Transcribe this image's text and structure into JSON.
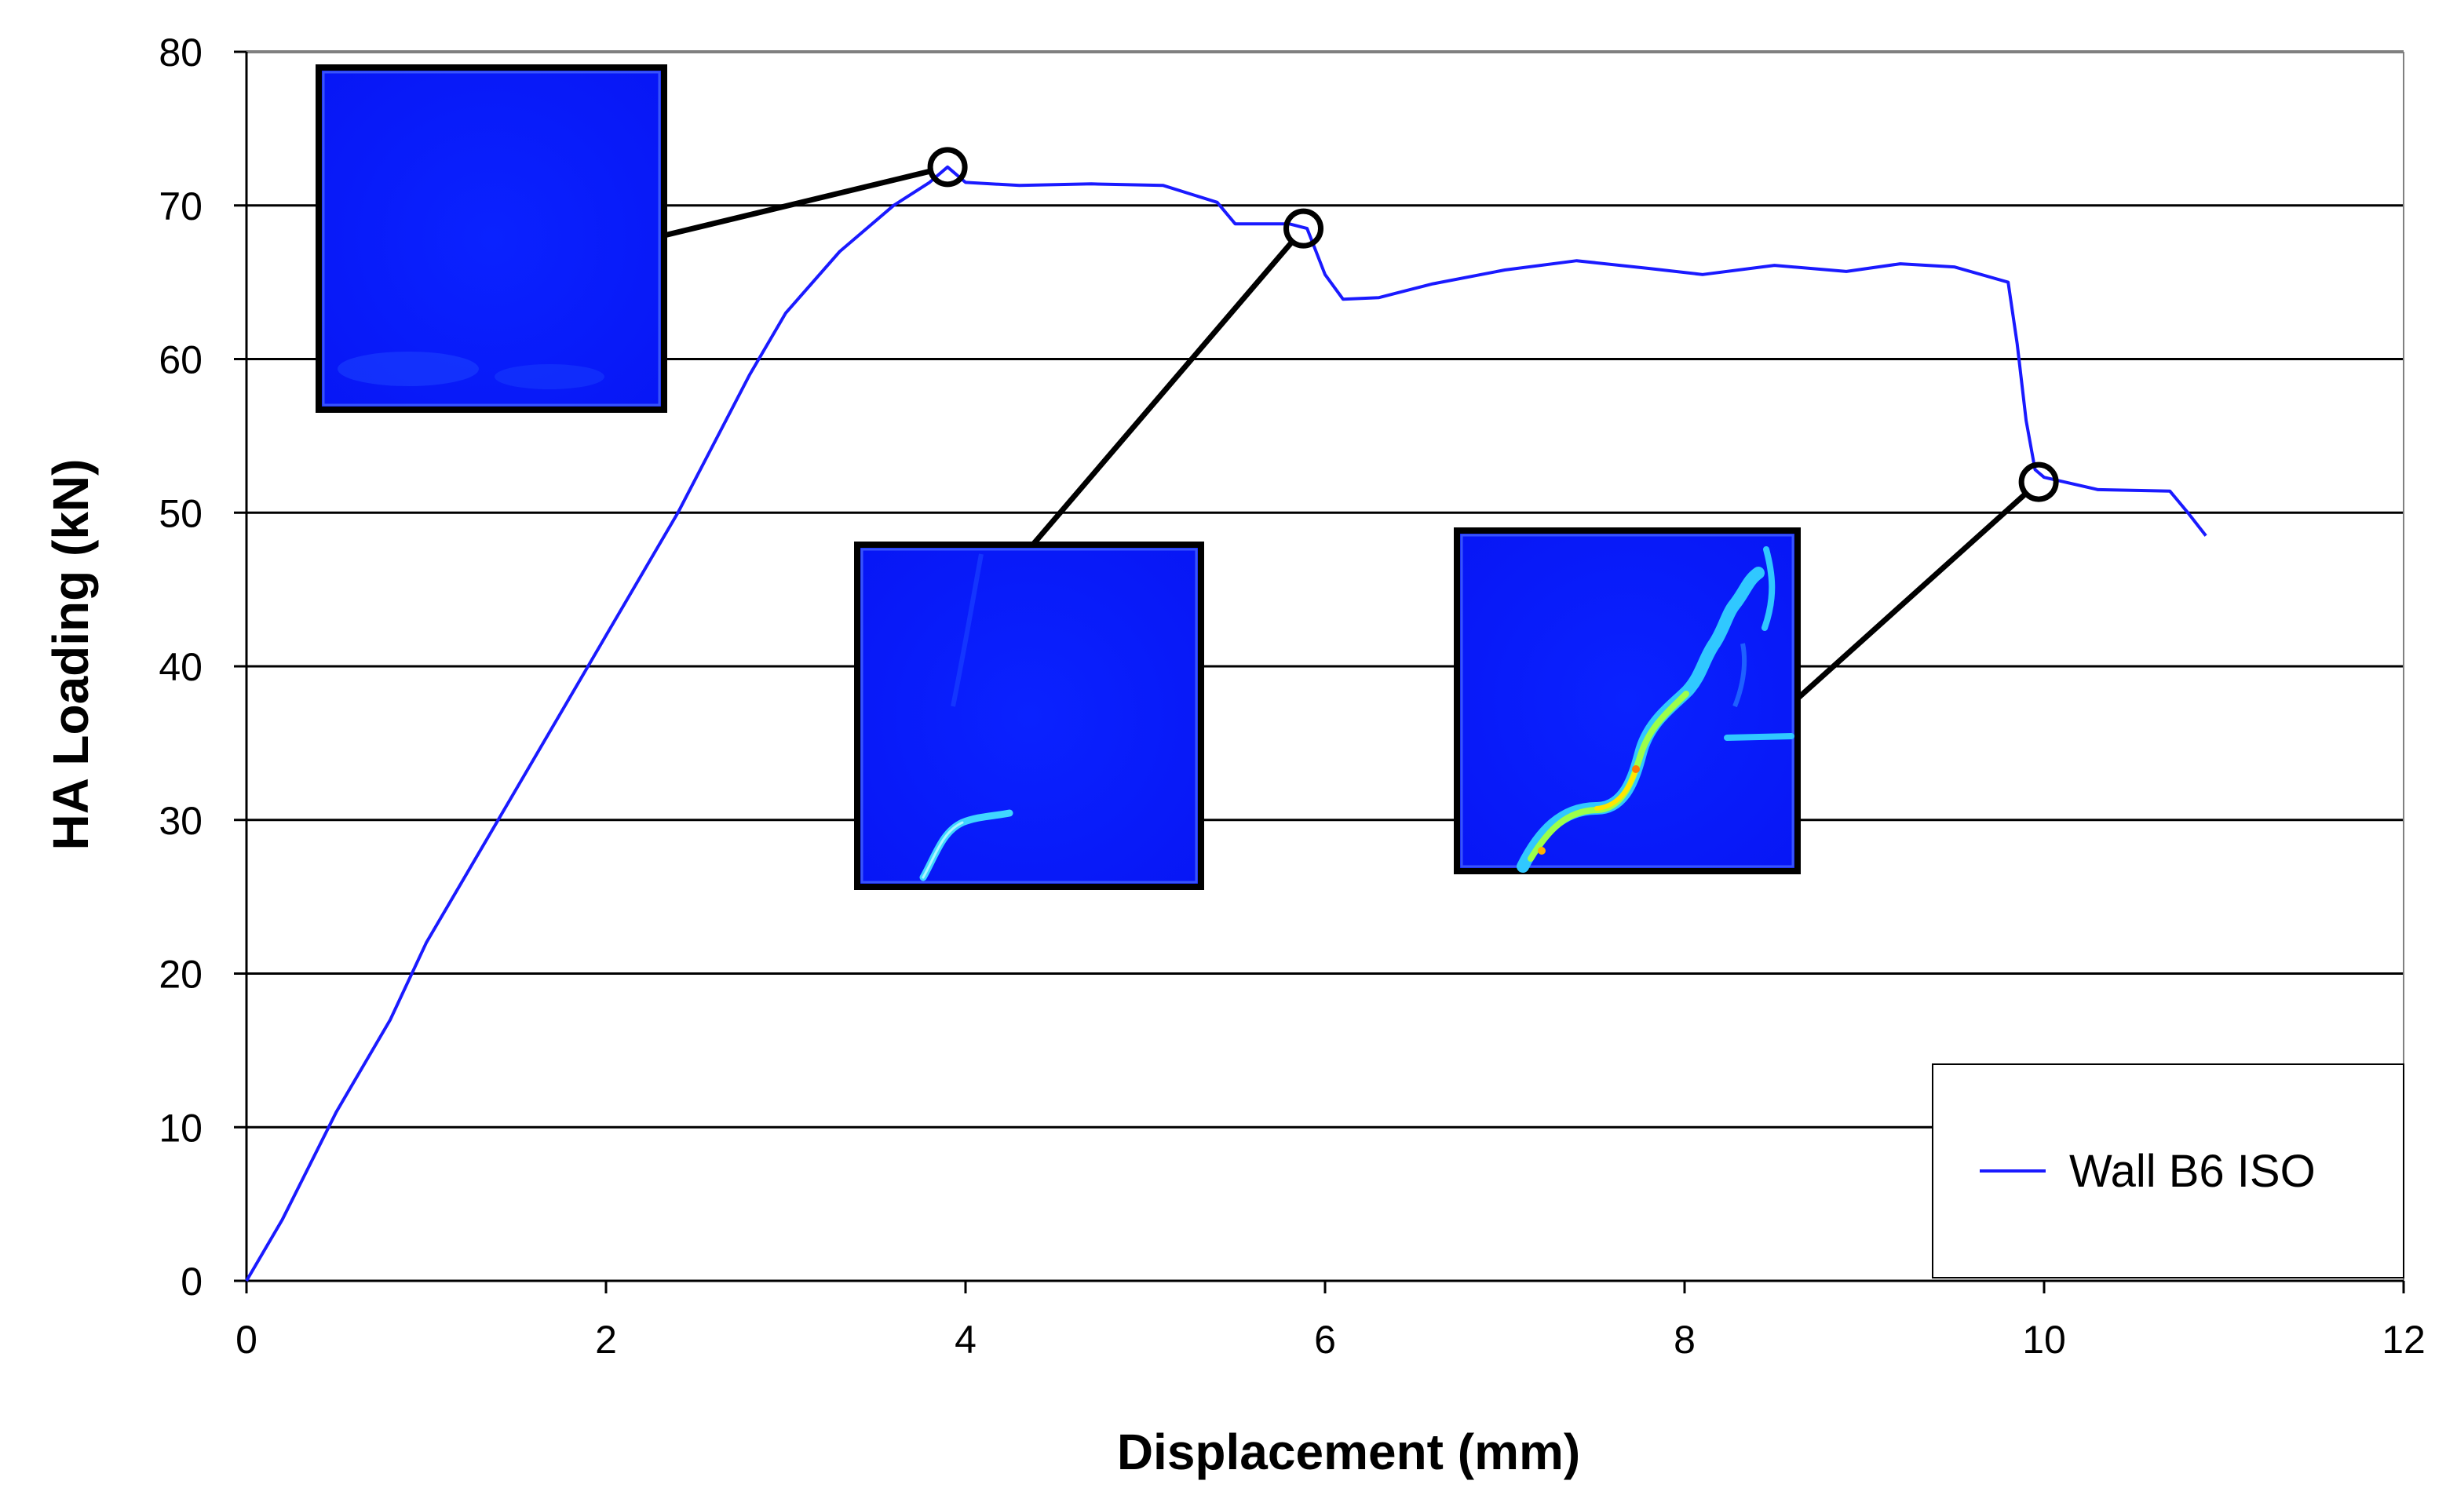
{
  "chart_data": {
    "type": "line",
    "title": "",
    "xlabel": "Displacement (mm)",
    "ylabel": "HA Loading (kN)",
    "xlim": [
      0,
      12
    ],
    "ylim": [
      0,
      80
    ],
    "x_ticks": [
      0,
      2,
      4,
      6,
      8,
      10,
      12
    ],
    "y_ticks": [
      0,
      10,
      20,
      30,
      40,
      50,
      60,
      70,
      80
    ],
    "grid": "horizontal",
    "legend_position": "bottom-right",
    "colors": {
      "series": "#1a1aff",
      "grid": "#000000",
      "inset_background": "#0a1fff",
      "crack_cyan": "#38c8ff",
      "crack_yellow": "#ffe600"
    },
    "series": [
      {
        "name": "Wall B6 ISO",
        "x": [
          0,
          0.2,
          0.5,
          0.8,
          1.0,
          1.4,
          1.6,
          2.0,
          2.4,
          2.8,
          3.0,
          3.3,
          3.6,
          3.8,
          3.9,
          4.0,
          4.3,
          4.7,
          5.1,
          5.4,
          5.5,
          5.7,
          5.8,
          5.9,
          6.0,
          6.1,
          6.3,
          6.6,
          7.0,
          7.4,
          7.8,
          8.1,
          8.5,
          8.9,
          9.2,
          9.5,
          9.8,
          9.85,
          9.9,
          9.95,
          10.0,
          10.3,
          10.7,
          10.8,
          10.9
        ],
        "y": [
          0,
          4,
          11,
          17,
          22,
          30,
          34,
          42,
          50,
          59,
          63,
          67,
          70,
          71.5,
          72.5,
          71.5,
          71.3,
          71.4,
          71.3,
          70.2,
          68.8,
          68.8,
          68.8,
          68.5,
          65.5,
          63.9,
          64.0,
          64.9,
          65.8,
          66.4,
          65.9,
          65.5,
          66.1,
          65.7,
          66.2,
          66.0,
          65.0,
          61.0,
          56.0,
          52.8,
          52.3,
          51.5,
          51.4,
          50.0,
          48.5
        ]
      }
    ],
    "annotations": [
      {
        "label": "",
        "x": 3.9,
        "y": 72.5,
        "image": "inset-no-crack"
      },
      {
        "label": "",
        "x": 5.88,
        "y": 68.5,
        "image": "inset-initial-crack"
      },
      {
        "label": "",
        "x": 9.97,
        "y": 52.0,
        "image": "inset-diagonal-crack"
      }
    ]
  }
}
